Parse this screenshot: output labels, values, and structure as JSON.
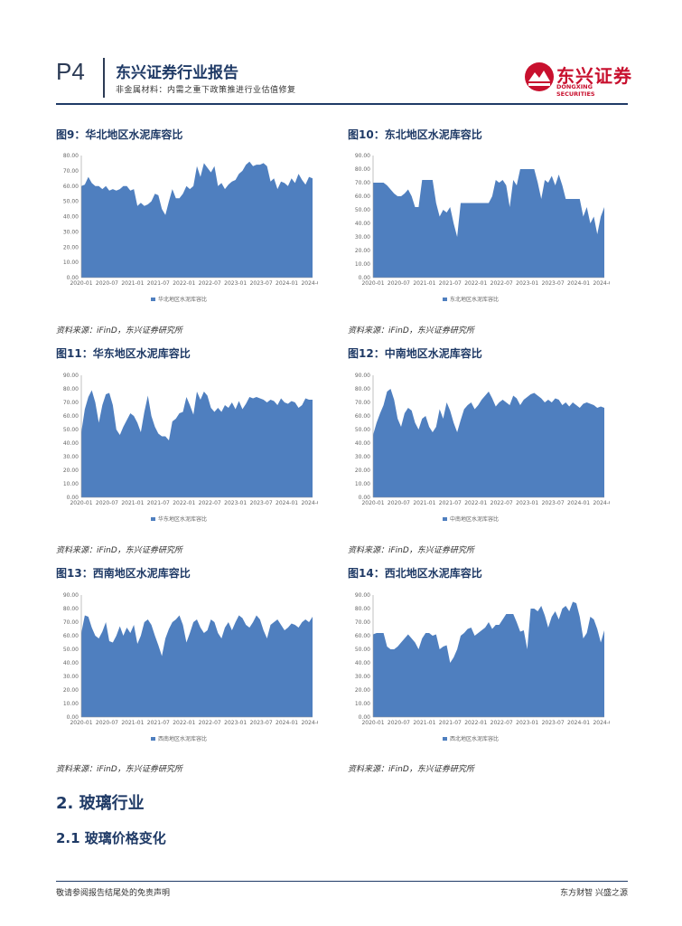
{
  "header": {
    "page_no": "P4",
    "title": "东兴证券行业报告",
    "subtitle": "非金属材料：内需之重下政策推进行业估值修复",
    "logo_cn": "东兴证券",
    "logo_en": "DONGXING SECURITIES",
    "colors": {
      "accent": "#1f3a66",
      "brand": "#c8102e"
    }
  },
  "figures": [
    {
      "title": "图9：华北地区水泥库容比",
      "legend": "华北地区水泥库容比",
      "source": "资料来源：iFinD，东兴证券研究所"
    },
    {
      "title": "图10：东北地区水泥库容比",
      "legend": "东北地区水泥库容比",
      "source": "资料来源：iFinD，东兴证券研究所"
    },
    {
      "title": "图11：华东地区水泥库容比",
      "legend": "华东地区水泥库容比",
      "source": "资料来源：iFinD，东兴证券研究所"
    },
    {
      "title": "图12：中南地区水泥库容比",
      "legend": "中南地区水泥库容比",
      "source": "资料来源：iFinD，东兴证券研究所"
    },
    {
      "title": "图13：西南地区水泥库容比",
      "legend": "西南地区水泥库容比",
      "source": "资料来源：iFinD，东兴证券研究所"
    },
    {
      "title": "图14：西北地区水泥库容比",
      "legend": "西北地区水泥库容比",
      "source": "资料来源：iFinD，东兴证券研究所"
    }
  ],
  "section": {
    "h1": "2. 玻璃行业",
    "h2": "2.1 玻璃价格变化"
  },
  "footer": {
    "left": "敬请参阅报告结尾处的免责声明",
    "right": "东方财智 兴盛之源"
  },
  "chart_data": [
    {
      "type": "area",
      "series_color": "#4f7fbf",
      "ylim": [
        0,
        80
      ],
      "yticks": [
        "0.00",
        "10.00",
        "20.00",
        "30.00",
        "40.00",
        "50.00",
        "60.00",
        "70.00",
        "80.00"
      ],
      "xticks": [
        "2020-01",
        "2020-07",
        "2021-01",
        "2021-07",
        "2022-01",
        "2022-07",
        "2023-01",
        "2023-07",
        "2024-01",
        "2024-07"
      ],
      "series": [
        {
          "name": "华北地区水泥库容比",
          "values": [
            60,
            61,
            66,
            62,
            60,
            60,
            58,
            60,
            57,
            58,
            57,
            58,
            60,
            60,
            57,
            58,
            47,
            49,
            47,
            48,
            50,
            55,
            54,
            45,
            41,
            50,
            58,
            52,
            52,
            55,
            60,
            58,
            60,
            73,
            66,
            75,
            72,
            69,
            73,
            60,
            62,
            58,
            61,
            63,
            64,
            68,
            70,
            74,
            76,
            73,
            74,
            74,
            75,
            73,
            63,
            65,
            58,
            63,
            62,
            60,
            65,
            62,
            68,
            64,
            61,
            66,
            65
          ]
        }
      ]
    },
    {
      "type": "area",
      "series_color": "#4f7fbf",
      "ylim": [
        0,
        90
      ],
      "yticks": [
        "0.00",
        "10.00",
        "20.00",
        "30.00",
        "40.00",
        "50.00",
        "60.00",
        "70.00",
        "80.00",
        "90.00"
      ],
      "xticks": [
        "2020-01",
        "2020-07",
        "2021-01",
        "2021-07",
        "2022-01",
        "2022-07",
        "2023-01",
        "2023-07",
        "2024-01",
        "2024-07"
      ],
      "series": [
        {
          "name": "东北地区水泥库容比",
          "values": [
            70,
            70,
            70,
            70,
            68,
            65,
            62,
            60,
            60,
            62,
            65,
            60,
            52,
            52,
            72,
            72,
            72,
            72,
            55,
            45,
            50,
            48,
            52,
            40,
            30,
            55,
            55,
            55,
            55,
            55,
            55,
            55,
            55,
            55,
            60,
            72,
            70,
            72,
            68,
            52,
            72,
            68,
            80,
            80,
            80,
            80,
            80,
            70,
            58,
            72,
            70,
            75,
            68,
            76,
            68,
            58,
            58,
            58,
            58,
            58,
            45,
            52,
            40,
            45,
            32,
            45,
            52
          ]
        }
      ]
    },
    {
      "type": "area",
      "series_color": "#4f7fbf",
      "ylim": [
        0,
        90
      ],
      "yticks": [
        "0.00",
        "10.00",
        "20.00",
        "30.00",
        "40.00",
        "50.00",
        "60.00",
        "70.00",
        "80.00",
        "90.00"
      ],
      "xticks": [
        "2020-01",
        "2020-07",
        "2021-01",
        "2021-07",
        "2022-01",
        "2022-07",
        "2023-01",
        "2023-07",
        "2024-01",
        "2024-07"
      ],
      "series": [
        {
          "name": "华东地区水泥库容比",
          "values": [
            48,
            65,
            74,
            79,
            70,
            55,
            68,
            76,
            77,
            68,
            50,
            46,
            52,
            57,
            62,
            60,
            55,
            48,
            63,
            75,
            60,
            52,
            47,
            45,
            45,
            42,
            56,
            58,
            62,
            63,
            74,
            68,
            61,
            78,
            72,
            78,
            75,
            66,
            63,
            66,
            63,
            68,
            66,
            70,
            65,
            71,
            65,
            69,
            74,
            73,
            74,
            73,
            72,
            70,
            72,
            71,
            68,
            73,
            70,
            69,
            71,
            70,
            66,
            68,
            73,
            72,
            72
          ]
        }
      ]
    },
    {
      "type": "area",
      "series_color": "#4f7fbf",
      "ylim": [
        0,
        90
      ],
      "yticks": [
        "0.00",
        "10.00",
        "20.00",
        "30.00",
        "40.00",
        "50.00",
        "60.00",
        "70.00",
        "80.00",
        "90.00"
      ],
      "xticks": [
        "2020-01",
        "2020-07",
        "2021-01",
        "2021-07",
        "2022-01",
        "2022-07",
        "2023-01",
        "2023-07",
        "2024-01",
        "2024-07"
      ],
      "series": [
        {
          "name": "中南地区水泥库容比",
          "values": [
            46,
            55,
            62,
            68,
            78,
            80,
            72,
            58,
            52,
            62,
            66,
            64,
            55,
            50,
            58,
            60,
            52,
            48,
            52,
            65,
            58,
            70,
            64,
            55,
            48,
            57,
            65,
            68,
            70,
            65,
            68,
            72,
            75,
            78,
            73,
            67,
            70,
            72,
            70,
            68,
            75,
            73,
            68,
            72,
            74,
            76,
            77,
            75,
            73,
            70,
            72,
            70,
            73,
            72,
            68,
            70,
            67,
            70,
            68,
            66,
            69,
            70,
            69,
            68,
            66,
            67,
            66
          ]
        }
      ]
    },
    {
      "type": "area",
      "series_color": "#4f7fbf",
      "ylim": [
        0,
        90
      ],
      "yticks": [
        "0.00",
        "10.00",
        "20.00",
        "30.00",
        "40.00",
        "50.00",
        "60.00",
        "70.00",
        "80.00",
        "90.00"
      ],
      "xticks": [
        "2020-01",
        "2020-07",
        "2021-01",
        "2021-07",
        "2022-01",
        "2022-07",
        "2023-01",
        "2023-07",
        "2024-01",
        "2024-07"
      ],
      "series": [
        {
          "name": "西南地区水泥库容比",
          "values": [
            62,
            75,
            74,
            66,
            60,
            58,
            63,
            70,
            56,
            55,
            60,
            67,
            60,
            66,
            62,
            68,
            54,
            60,
            70,
            72,
            68,
            60,
            53,
            45,
            58,
            65,
            70,
            72,
            75,
            68,
            55,
            62,
            70,
            72,
            66,
            62,
            64,
            72,
            70,
            62,
            58,
            66,
            70,
            64,
            70,
            75,
            73,
            68,
            66,
            70,
            75,
            72,
            64,
            58,
            68,
            70,
            72,
            68,
            64,
            66,
            69,
            68,
            66,
            70,
            72,
            70,
            74
          ]
        }
      ]
    },
    {
      "type": "area",
      "series_color": "#4f7fbf",
      "ylim": [
        0,
        90
      ],
      "yticks": [
        "0.00",
        "10.00",
        "20.00",
        "30.00",
        "40.00",
        "50.00",
        "60.00",
        "70.00",
        "80.00",
        "90.00"
      ],
      "xticks": [
        "2020-01",
        "2020-07",
        "2021-01",
        "2021-07",
        "2022-01",
        "2022-07",
        "2023-01",
        "2023-07",
        "2024-01",
        "2024-07"
      ],
      "series": [
        {
          "name": "西北地区水泥库容比",
          "values": [
            61,
            62,
            62,
            62,
            52,
            50,
            50,
            52,
            55,
            58,
            61,
            58,
            55,
            50,
            58,
            62,
            62,
            60,
            61,
            50,
            52,
            53,
            40,
            44,
            50,
            60,
            62,
            65,
            66,
            60,
            62,
            64,
            66,
            70,
            65,
            68,
            68,
            72,
            76,
            76,
            76,
            70,
            63,
            64,
            50,
            80,
            80,
            78,
            82,
            75,
            66,
            74,
            78,
            72,
            80,
            82,
            78,
            85,
            84,
            74,
            58,
            62,
            74,
            72,
            65,
            55,
            64
          ]
        }
      ]
    }
  ]
}
